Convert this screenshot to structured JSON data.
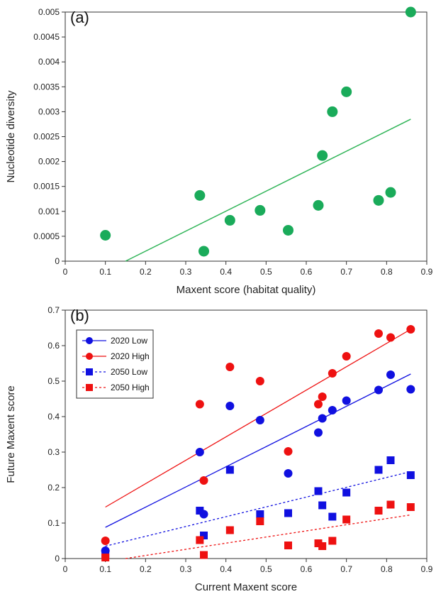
{
  "chart_data": [
    {
      "type": "scatter",
      "panel_label": "(a)",
      "xlabel": "Maxent score (habitat quality)",
      "ylabel": "Nucleotide diversity",
      "xlim": [
        0,
        0.9
      ],
      "ylim": [
        0,
        0.005
      ],
      "x_ticks": [
        "0",
        "0.1",
        "0.2",
        "0.3",
        "0.4",
        "0.5",
        "0.6",
        "0.7",
        "0.8",
        "0.9"
      ],
      "y_ticks": [
        "0",
        "0.0005",
        "0.001",
        "0.0015",
        "0.002",
        "0.0025",
        "0.003",
        "0.0035",
        "0.004",
        "0.0045",
        "0.005"
      ],
      "grid": false,
      "points": {
        "color": "#1aab5a",
        "x": [
          0.1,
          0.335,
          0.345,
          0.41,
          0.485,
          0.555,
          0.63,
          0.64,
          0.665,
          0.7,
          0.78,
          0.81,
          0.86
        ],
        "y": [
          0.00052,
          0.00132,
          0.0002,
          0.00082,
          0.00102,
          0.00062,
          0.00112,
          0.00212,
          0.003,
          0.0034,
          0.00122,
          0.00138,
          0.005
        ]
      },
      "trendline": {
        "color": "#2fb457",
        "x": [
          0.15,
          0.86
        ],
        "y": [
          0.0,
          0.00285
        ]
      }
    },
    {
      "type": "scatter",
      "panel_label": "(b)",
      "xlabel": "Current Maxent score",
      "ylabel": "Future Maxent score",
      "xlim": [
        0,
        0.9
      ],
      "ylim": [
        0,
        0.7
      ],
      "x_ticks": [
        "0",
        "0.1",
        "0.2",
        "0.3",
        "0.4",
        "0.5",
        "0.6",
        "0.7",
        "0.8",
        "0.9"
      ],
      "y_ticks": [
        "0",
        "0.1",
        "0.2",
        "0.3",
        "0.4",
        "0.5",
        "0.6",
        "0.7"
      ],
      "grid": false,
      "legend_position": "top-left",
      "x": [
        0.1,
        0.335,
        0.345,
        0.41,
        0.485,
        0.555,
        0.63,
        0.64,
        0.665,
        0.7,
        0.78,
        0.81,
        0.86
      ],
      "series": [
        {
          "name": "2020 Low",
          "marker": "circle",
          "color": "#1010e0",
          "line_style": "solid",
          "values": [
            0.022,
            0.3,
            0.125,
            0.43,
            0.39,
            0.24,
            0.355,
            0.395,
            0.418,
            0.445,
            0.475,
            0.518,
            0.477
          ],
          "trend": {
            "x": [
              0.1,
              0.86
            ],
            "y": [
              0.088,
              0.52
            ]
          }
        },
        {
          "name": "2020 High",
          "marker": "circle",
          "color": "#ee1111",
          "line_style": "solid",
          "values": [
            0.05,
            0.435,
            0.22,
            0.54,
            0.5,
            0.302,
            0.435,
            0.456,
            0.522,
            0.57,
            0.634,
            0.623,
            0.646
          ],
          "trend": {
            "x": [
              0.1,
              0.86
            ],
            "y": [
              0.145,
              0.646
            ]
          }
        },
        {
          "name": "2050 Low",
          "marker": "square",
          "color": "#1010e0",
          "line_style": "dotted",
          "values": [
            0.01,
            0.135,
            0.065,
            0.25,
            0.125,
            0.128,
            0.19,
            0.15,
            0.118,
            0.186,
            0.25,
            0.277,
            0.235
          ],
          "trend": {
            "x": [
              0.1,
              0.86
            ],
            "y": [
              0.035,
              0.245
            ]
          }
        },
        {
          "name": "2050 High",
          "marker": "square",
          "color": "#ee1111",
          "line_style": "dotted",
          "values": [
            0.003,
            0.052,
            0.01,
            0.08,
            0.105,
            0.037,
            0.043,
            0.035,
            0.05,
            0.11,
            0.135,
            0.152,
            0.145
          ],
          "trend": {
            "x": [
              0.15,
              0.86
            ],
            "y": [
              0.0,
              0.123
            ]
          }
        }
      ]
    }
  ]
}
